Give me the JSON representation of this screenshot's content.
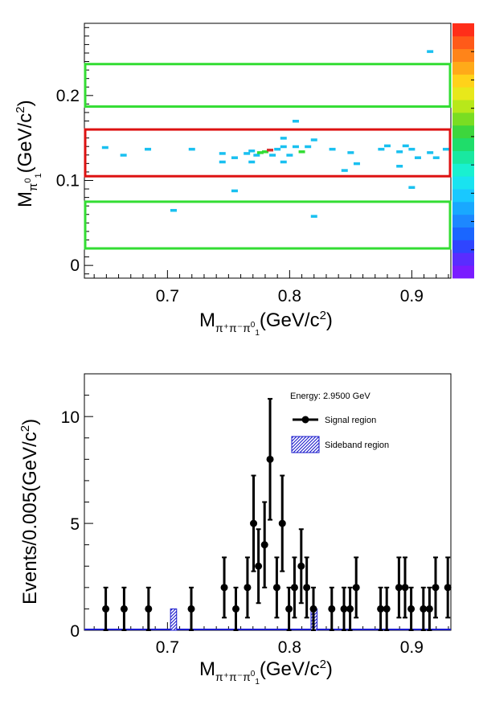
{
  "chart_data": [
    {
      "type": "heatmap",
      "xlabel": "M(GeV/c²)",
      "xlabel_parts": {
        "main": "M",
        "sub": "π⁺π⁻π",
        "subsub": "0",
        "subsubsub": "1",
        "unit": "(GeV/c",
        "sup": "2",
        "close": ")"
      },
      "ylabel_parts": {
        "main": "M",
        "sub": "π",
        "subsup": "0",
        "subsub": "1",
        "unit": "(GeV/c",
        "sup": "2",
        "close": ")"
      },
      "xlim": [
        0.632,
        0.932
      ],
      "ylim": [
        -0.015,
        0.285
      ],
      "x_ticks": [
        {
          "v": 0.7,
          "label": "0.7"
        },
        {
          "v": 0.8,
          "label": "0.8"
        },
        {
          "v": 0.9,
          "label": "0.9"
        }
      ],
      "y_ticks": [
        {
          "v": 0,
          "label": "0"
        },
        {
          "v": 0.1,
          "label": "0.1"
        },
        {
          "v": 0.2,
          "label": "0.2"
        }
      ],
      "boxes": [
        {
          "name": "sideband-upper",
          "y": [
            0.187,
            0.237
          ],
          "color": "#33dd33"
        },
        {
          "name": "signal",
          "y": [
            0.105,
            0.16
          ],
          "color": "#dd1111"
        },
        {
          "name": "sideband-lower",
          "y": [
            0.02,
            0.075
          ],
          "color": "#33dd33"
        }
      ],
      "cells": [
        {
          "x": 0.649,
          "y": 0.139,
          "c": "#19c0f0"
        },
        {
          "x": 0.664,
          "y": 0.13,
          "c": "#19c0f0"
        },
        {
          "x": 0.684,
          "y": 0.137,
          "c": "#19c0f0"
        },
        {
          "x": 0.705,
          "y": 0.065,
          "c": "#19c0f0"
        },
        {
          "x": 0.72,
          "y": 0.137,
          "c": "#19c0f0"
        },
        {
          "x": 0.745,
          "y": 0.132,
          "c": "#19c0f0"
        },
        {
          "x": 0.745,
          "y": 0.122,
          "c": "#19c0f0"
        },
        {
          "x": 0.755,
          "y": 0.127,
          "c": "#19c0f0"
        },
        {
          "x": 0.755,
          "y": 0.088,
          "c": "#19c0f0"
        },
        {
          "x": 0.765,
          "y": 0.132,
          "c": "#19c0f0"
        },
        {
          "x": 0.769,
          "y": 0.135,
          "c": "#19c0f0"
        },
        {
          "x": 0.769,
          "y": 0.122,
          "c": "#19c0f0"
        },
        {
          "x": 0.773,
          "y": 0.13,
          "c": "#19c0f0"
        },
        {
          "x": 0.776,
          "y": 0.133,
          "c": "#33dd33"
        },
        {
          "x": 0.78,
          "y": 0.134,
          "c": "#33dd33"
        },
        {
          "x": 0.784,
          "y": 0.136,
          "c": "#d83030"
        },
        {
          "x": 0.786,
          "y": 0.13,
          "c": "#19c0f0"
        },
        {
          "x": 0.79,
          "y": 0.137,
          "c": "#19c0f0"
        },
        {
          "x": 0.795,
          "y": 0.122,
          "c": "#19c0f0"
        },
        {
          "x": 0.795,
          "y": 0.14,
          "c": "#19c0f0"
        },
        {
          "x": 0.795,
          "y": 0.15,
          "c": "#19c0f0"
        },
        {
          "x": 0.8,
          "y": 0.13,
          "c": "#19c0f0"
        },
        {
          "x": 0.805,
          "y": 0.17,
          "c": "#19c0f0"
        },
        {
          "x": 0.805,
          "y": 0.14,
          "c": "#19c0f0"
        },
        {
          "x": 0.81,
          "y": 0.134,
          "c": "#33dd33"
        },
        {
          "x": 0.815,
          "y": 0.14,
          "c": "#19c0f0"
        },
        {
          "x": 0.82,
          "y": 0.148,
          "c": "#19c0f0"
        },
        {
          "x": 0.82,
          "y": 0.058,
          "c": "#19c0f0"
        },
        {
          "x": 0.835,
          "y": 0.137,
          "c": "#19c0f0"
        },
        {
          "x": 0.845,
          "y": 0.112,
          "c": "#19c0f0"
        },
        {
          "x": 0.85,
          "y": 0.133,
          "c": "#19c0f0"
        },
        {
          "x": 0.855,
          "y": 0.12,
          "c": "#19c0f0"
        },
        {
          "x": 0.875,
          "y": 0.137,
          "c": "#19c0f0"
        },
        {
          "x": 0.88,
          "y": 0.141,
          "c": "#19c0f0"
        },
        {
          "x": 0.89,
          "y": 0.134,
          "c": "#19c0f0"
        },
        {
          "x": 0.89,
          "y": 0.117,
          "c": "#19c0f0"
        },
        {
          "x": 0.895,
          "y": 0.141,
          "c": "#19c0f0"
        },
        {
          "x": 0.9,
          "y": 0.137,
          "c": "#19c0f0"
        },
        {
          "x": 0.9,
          "y": 0.092,
          "c": "#19c0f0"
        },
        {
          "x": 0.905,
          "y": 0.127,
          "c": "#19c0f0"
        },
        {
          "x": 0.915,
          "y": 0.133,
          "c": "#19c0f0"
        },
        {
          "x": 0.92,
          "y": 0.127,
          "c": "#19c0f0"
        },
        {
          "x": 0.928,
          "y": 0.137,
          "c": "#19c0f0"
        },
        {
          "x": 0.915,
          "y": 0.252,
          "c": "#19c0f0"
        }
      ],
      "palette": [
        "#7a1cff",
        "#5a2cff",
        "#2f45ff",
        "#1a66ff",
        "#1d88ff",
        "#19a8ff",
        "#19c8ff",
        "#19e3f0",
        "#19f0d0",
        "#19e8a0",
        "#1fdd6a",
        "#3dd63d",
        "#7add22",
        "#b8e81a",
        "#e8e81a",
        "#ffd21a",
        "#ffaa19",
        "#ff8419",
        "#ff5a19",
        "#ff2e19"
      ]
    },
    {
      "type": "scatter",
      "ylabel": "Events/0.005(GeV/c²)",
      "ylabel_parts": {
        "main": "Events/0.005(GeV/c",
        "sup": "2",
        "close": ")"
      },
      "xlabel_parts": {
        "main": "M",
        "sub": "π⁺π⁻π",
        "subsub": "0",
        "subsubsub": "1",
        "unit": "(GeV/c",
        "sup": "2",
        "close": ")"
      },
      "xlim": [
        0.632,
        0.932
      ],
      "ylim": [
        0,
        12
      ],
      "x_ticks": [
        {
          "v": 0.7,
          "label": "0.7"
        },
        {
          "v": 0.8,
          "label": "0.8"
        },
        {
          "v": 0.9,
          "label": "0.9"
        }
      ],
      "y_ticks": [
        {
          "v": 0,
          "label": "0"
        },
        {
          "v": 5,
          "label": "5"
        },
        {
          "v": 10,
          "label": "10"
        }
      ],
      "legend": {
        "title": "Energy: 2.9500 GeV",
        "signal": "Signal region",
        "sideband": "Sideband region"
      },
      "signal": {
        "x": [
          0.6495,
          0.6645,
          0.6845,
          0.7195,
          0.7465,
          0.756,
          0.7655,
          0.7705,
          0.7745,
          0.7795,
          0.784,
          0.7895,
          0.794,
          0.7995,
          0.804,
          0.8095,
          0.814,
          0.8195,
          0.8345,
          0.8445,
          0.8495,
          0.8545,
          0.8745,
          0.8795,
          0.8895,
          0.8945,
          0.8995,
          0.9095,
          0.9145,
          0.9195,
          0.9295
        ],
        "y": [
          1,
          1,
          1,
          1,
          2,
          1,
          2,
          5,
          3,
          4,
          8,
          2,
          5,
          1,
          2,
          3,
          2,
          1,
          1,
          1,
          1,
          2,
          1,
          1,
          2,
          2,
          1,
          1,
          1,
          2,
          2
        ],
        "err": [
          1,
          1,
          1,
          1,
          1.41,
          1,
          1.41,
          2.24,
          1.73,
          2,
          2.83,
          1.41,
          2.24,
          1,
          1.41,
          1.73,
          1.41,
          1,
          1,
          1,
          1,
          1.41,
          1,
          1,
          1.41,
          1.41,
          1,
          1,
          1,
          1.41,
          1.41
        ]
      },
      "sideband": {
        "x": [
          0.705,
          0.82
        ],
        "y": [
          1,
          1
        ]
      }
    }
  ]
}
